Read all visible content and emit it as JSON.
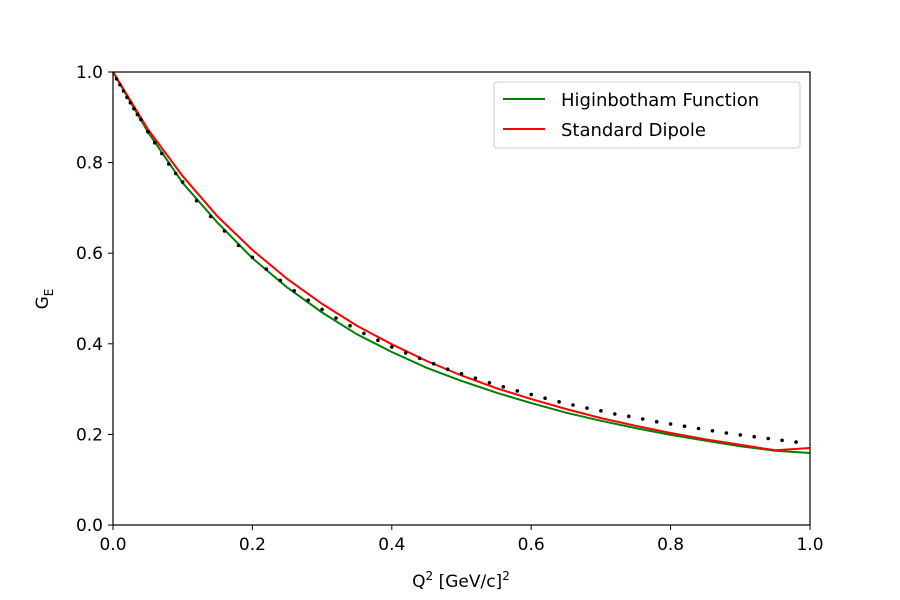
{
  "chart_data": {
    "type": "line",
    "title": "",
    "xlabel": {
      "base": "Q",
      "sup1": "2",
      "mid": " [GeV/c]",
      "sup2": "2"
    },
    "ylabel": {
      "base": "G",
      "sub": "E"
    },
    "xlim": [
      0.0,
      1.0
    ],
    "ylim": [
      0.0,
      1.0
    ],
    "xticks": [
      0.0,
      0.2,
      0.4,
      0.6,
      0.8,
      1.0
    ],
    "xtick_labels": [
      "0.0",
      "0.2",
      "0.4",
      "0.6",
      "0.8",
      "1.0"
    ],
    "yticks": [
      0.0,
      0.2,
      0.4,
      0.6,
      0.8,
      1.0
    ],
    "ytick_labels": [
      "0.0",
      "0.2",
      "0.4",
      "0.6",
      "0.8",
      "1.0"
    ],
    "grid": false,
    "legend_position": "top-right",
    "series": [
      {
        "name": "Higinbotham Function",
        "color": "#008000",
        "x": [
          0.0,
          0.05,
          0.1,
          0.15,
          0.2,
          0.25,
          0.3,
          0.35,
          0.4,
          0.45,
          0.5,
          0.55,
          0.6,
          0.65,
          0.7,
          0.75,
          0.8,
          0.85,
          0.9,
          0.95,
          1.0
        ],
        "y": [
          1.0,
          0.868,
          0.755,
          0.667,
          0.589,
          0.524,
          0.469,
          0.421,
          0.382,
          0.347,
          0.318,
          0.292,
          0.269,
          0.248,
          0.23,
          0.214,
          0.199,
          0.186,
          0.174,
          0.164,
          0.159
        ]
      },
      {
        "name": "Standard Dipole",
        "color": "#ff0000",
        "x": [
          0.0,
          0.05,
          0.1,
          0.15,
          0.2,
          0.25,
          0.3,
          0.35,
          0.4,
          0.45,
          0.5,
          0.55,
          0.6,
          0.65,
          0.7,
          0.75,
          0.8,
          0.85,
          0.9,
          0.95,
          1.0
        ],
        "y": [
          1.0,
          0.874,
          0.77,
          0.681,
          0.607,
          0.543,
          0.488,
          0.44,
          0.399,
          0.362,
          0.33,
          0.302,
          0.278,
          0.256,
          0.236,
          0.219,
          0.203,
          0.189,
          0.177,
          0.165,
          0.17
        ]
      }
    ],
    "points": {
      "color": "#000000",
      "x": [
        0.005,
        0.01,
        0.015,
        0.02,
        0.025,
        0.03,
        0.035,
        0.04,
        0.05,
        0.06,
        0.07,
        0.08,
        0.09,
        0.1,
        0.12,
        0.14,
        0.16,
        0.18,
        0.2,
        0.22,
        0.24,
        0.26,
        0.28,
        0.3,
        0.32,
        0.34,
        0.36,
        0.38,
        0.4,
        0.42,
        0.44,
        0.46,
        0.48,
        0.5,
        0.52,
        0.54,
        0.56,
        0.58,
        0.6,
        0.62,
        0.64,
        0.66,
        0.68,
        0.7,
        0.72,
        0.74,
        0.76,
        0.78,
        0.8,
        0.82,
        0.84,
        0.86,
        0.88,
        0.9,
        0.92,
        0.94,
        0.96,
        0.98
      ],
      "y": [
        0.985,
        0.972,
        0.958,
        0.944,
        0.932,
        0.919,
        0.906,
        0.895,
        0.868,
        0.844,
        0.82,
        0.797,
        0.776,
        0.757,
        0.716,
        0.681,
        0.649,
        0.617,
        0.591,
        0.565,
        0.54,
        0.517,
        0.496,
        0.476,
        0.457,
        0.44,
        0.423,
        0.408,
        0.393,
        0.38,
        0.368,
        0.356,
        0.344,
        0.334,
        0.324,
        0.314,
        0.305,
        0.296,
        0.288,
        0.28,
        0.272,
        0.265,
        0.258,
        0.252,
        0.245,
        0.24,
        0.234,
        0.228,
        0.223,
        0.218,
        0.213,
        0.208,
        0.203,
        0.199,
        0.195,
        0.191,
        0.187,
        0.183
      ]
    }
  }
}
